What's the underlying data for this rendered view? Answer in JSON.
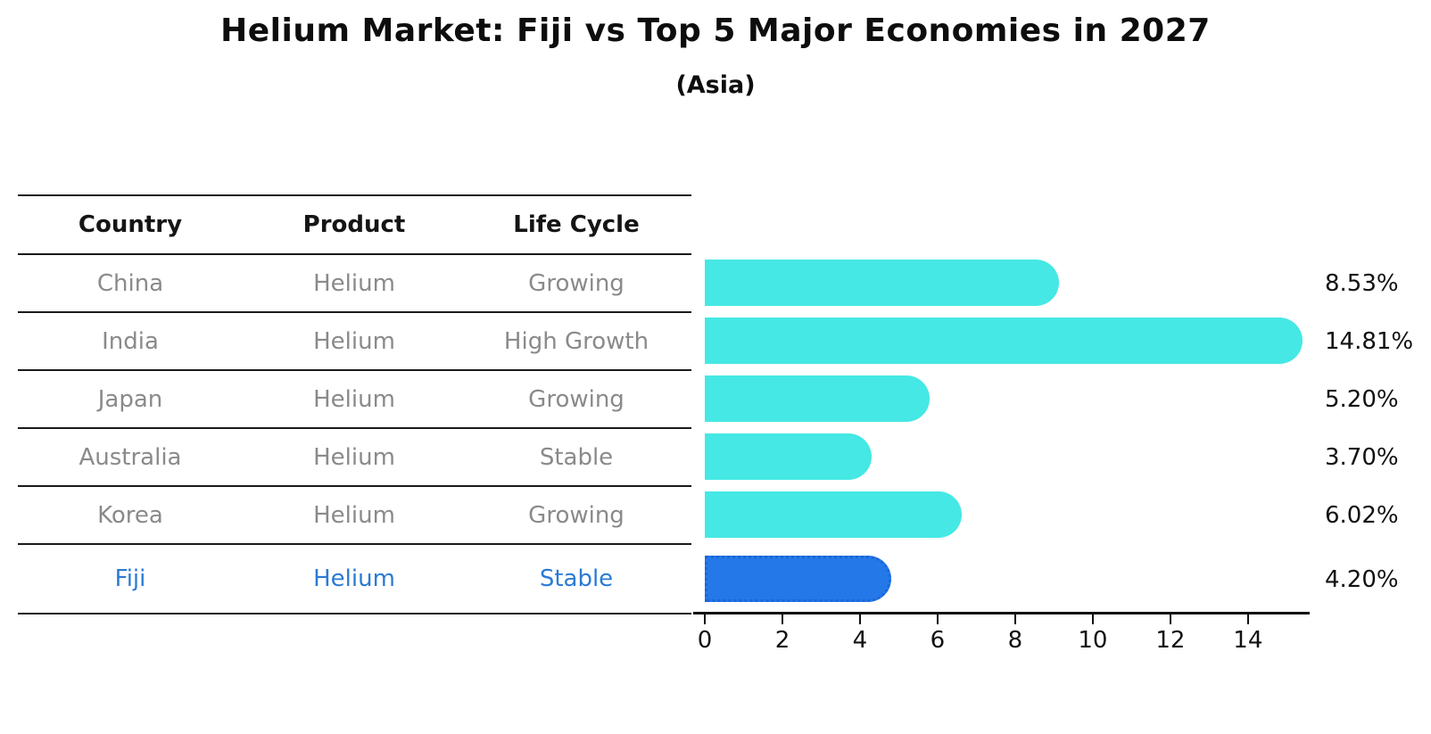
{
  "title": "Helium Market: Fiji vs Top 5 Major Economies in 2027",
  "subtitle": "(Asia)",
  "table": {
    "headers": [
      "Country",
      "Product",
      "Life Cycle"
    ],
    "rows": [
      {
        "country": "China",
        "product": "Helium",
        "life_cycle": "Growing",
        "highlight": false
      },
      {
        "country": "India",
        "product": "Helium",
        "life_cycle": "High Growth",
        "highlight": false
      },
      {
        "country": "Japan",
        "product": "Helium",
        "life_cycle": "Growing",
        "highlight": false
      },
      {
        "country": "Australia",
        "product": "Helium",
        "life_cycle": "Stable",
        "highlight": false
      },
      {
        "country": "Korea",
        "product": "Helium",
        "life_cycle": "Growing",
        "highlight": false
      },
      {
        "country": "Fiji",
        "product": "Helium",
        "life_cycle": "Stable",
        "highlight": true
      }
    ]
  },
  "colors": {
    "bar": "#45E8E4",
    "highlight_bar": "#2478E8",
    "highlight_bar_border": "#1A66D9",
    "highlight_text": "#2B7BD4",
    "row_text": "#8A8A8A",
    "axis_text": "#111111"
  },
  "chart_data": {
    "type": "bar",
    "orientation": "horizontal",
    "title": "Helium Market: Fiji vs Top 5 Major Economies in 2027",
    "subtitle": "(Asia)",
    "categories": [
      "China",
      "India",
      "Japan",
      "Australia",
      "Korea",
      "Fiji"
    ],
    "values": [
      8.53,
      14.81,
      5.2,
      3.7,
      6.02,
      4.2
    ],
    "labels": [
      "8.53%",
      "14.81%",
      "5.20%",
      "3.70%",
      "6.02%",
      "4.20%"
    ],
    "highlight_index": 5,
    "xticks": [
      0,
      2,
      4,
      6,
      8,
      10,
      12,
      14
    ],
    "xlim": [
      0,
      15.59
    ],
    "xlabel": "",
    "ylabel": "",
    "grid": false,
    "legend": "none"
  }
}
